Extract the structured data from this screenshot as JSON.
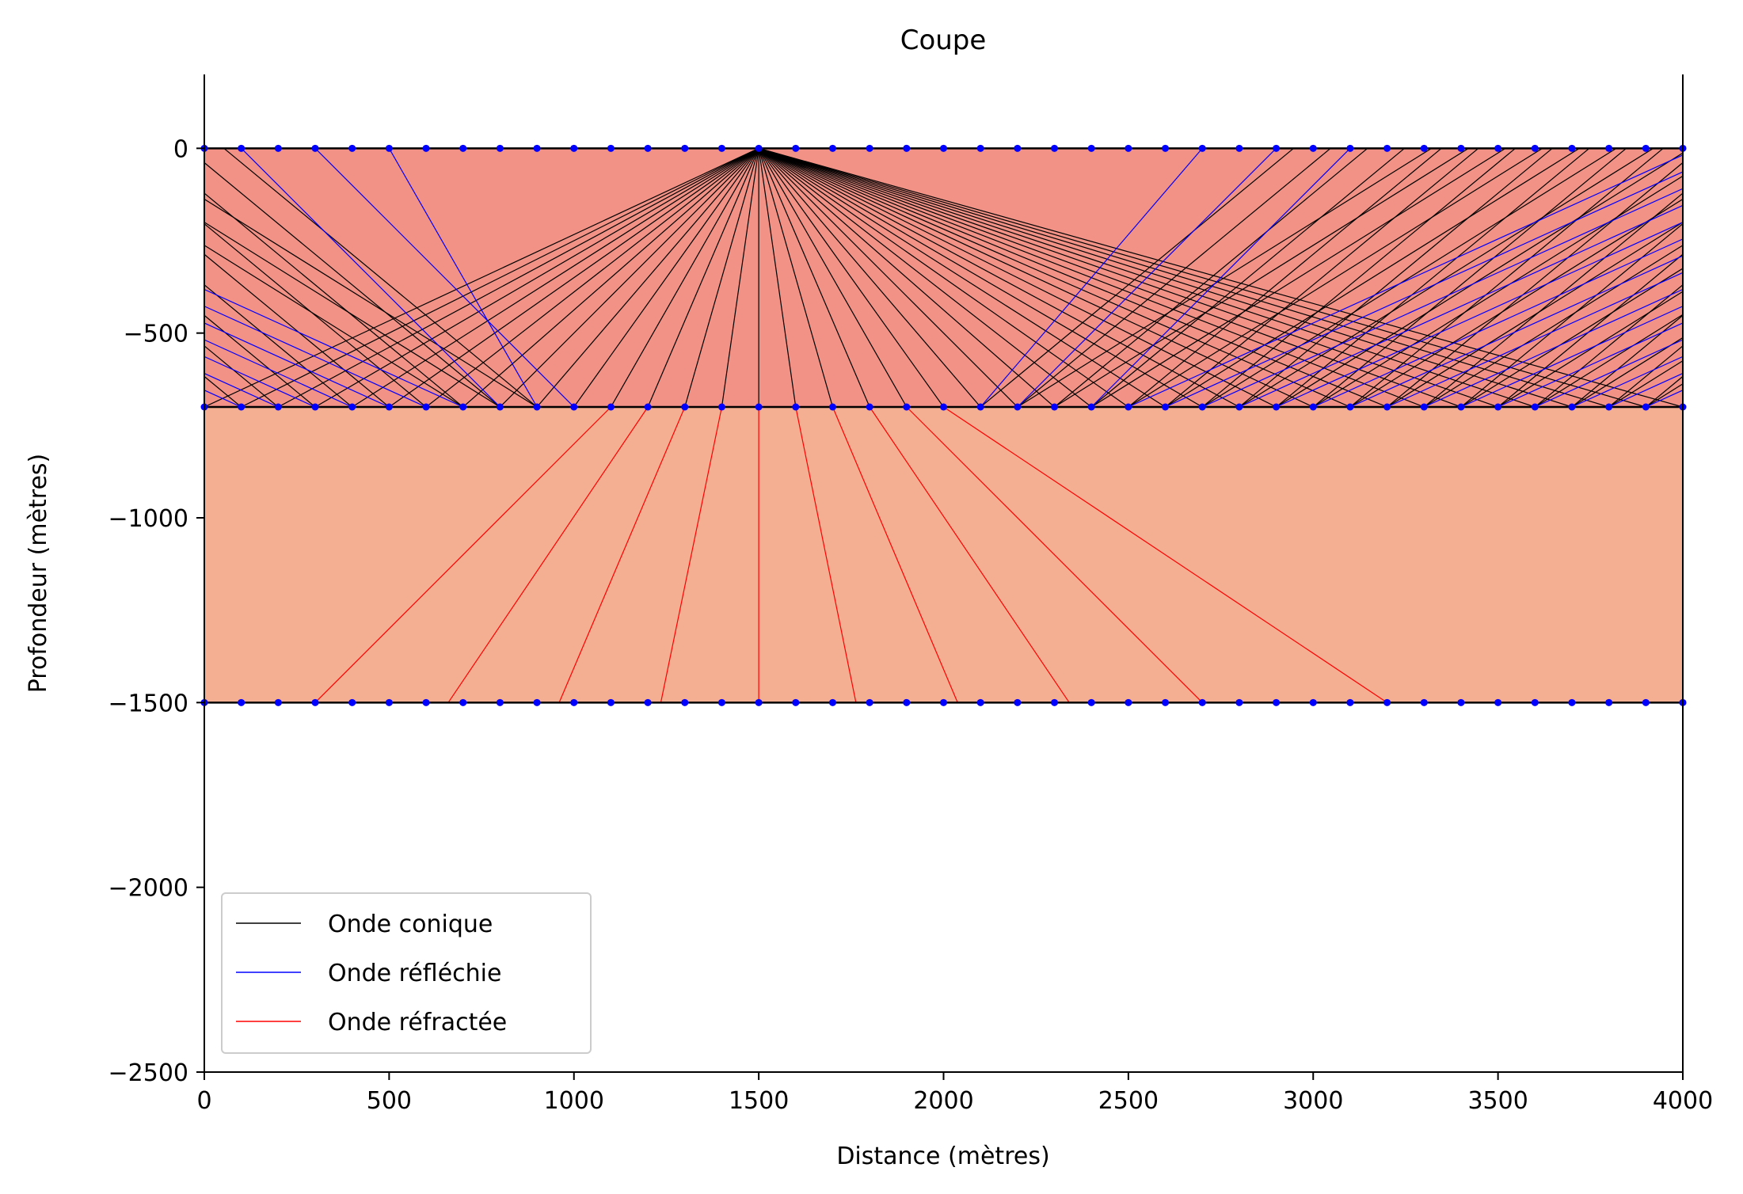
{
  "chart_data": {
    "type": "line",
    "title": "Coupe",
    "xlabel": "Distance (mètres)",
    "ylabel": "Profondeur (mètres)",
    "xlim": [
      0,
      4000
    ],
    "ylim": [
      -2500,
      200
    ],
    "xticks": [
      0,
      500,
      1000,
      1500,
      2000,
      2500,
      3000,
      3500,
      4000
    ],
    "xtick_labels": [
      "0",
      "500",
      "1000",
      "1500",
      "2000",
      "2500",
      "3000",
      "3500",
      "4000"
    ],
    "yticks": [
      0,
      -500,
      -1000,
      -1500,
      -2000,
      -2500
    ],
    "ytick_labels": [
      "0",
      "−500",
      "−1000",
      "−1500",
      "−2000",
      "−2500"
    ],
    "grid": false,
    "legend_position": "lower-left",
    "layers": [
      {
        "top": 0,
        "bottom": -700,
        "color": "#f29185"
      },
      {
        "top": -700,
        "bottom": -1500,
        "color": "#f4ae91"
      }
    ],
    "interfaces": [
      0,
      -700,
      -1500
    ],
    "source": {
      "x": 1500,
      "y": 0
    },
    "receiver_spacing": 100,
    "series": [
      {
        "name": "Onde conique",
        "color": "#000000"
      },
      {
        "name": "Onde réfléchie",
        "color": "#0000ff"
      },
      {
        "name": "Onde réfractée",
        "color": "#ff0000"
      }
    ],
    "refracted_rays": [
      {
        "x0": 1100,
        "x1": 300
      },
      {
        "x0": 1200,
        "x1": 660
      },
      {
        "x0": 1300,
        "x1": 960
      },
      {
        "x0": 1400,
        "x1": 1235
      },
      {
        "x0": 1500,
        "x1": 1500
      },
      {
        "x0": 1600,
        "x1": 1763
      },
      {
        "x0": 1700,
        "x1": 2038
      },
      {
        "x0": 1800,
        "x1": 2340
      },
      {
        "x0": 1900,
        "x1": 2700
      },
      {
        "x0": 2000,
        "x1": 3200
      }
    ],
    "head_wave_slope": 1.21,
    "marker_color": "#0000ff"
  }
}
